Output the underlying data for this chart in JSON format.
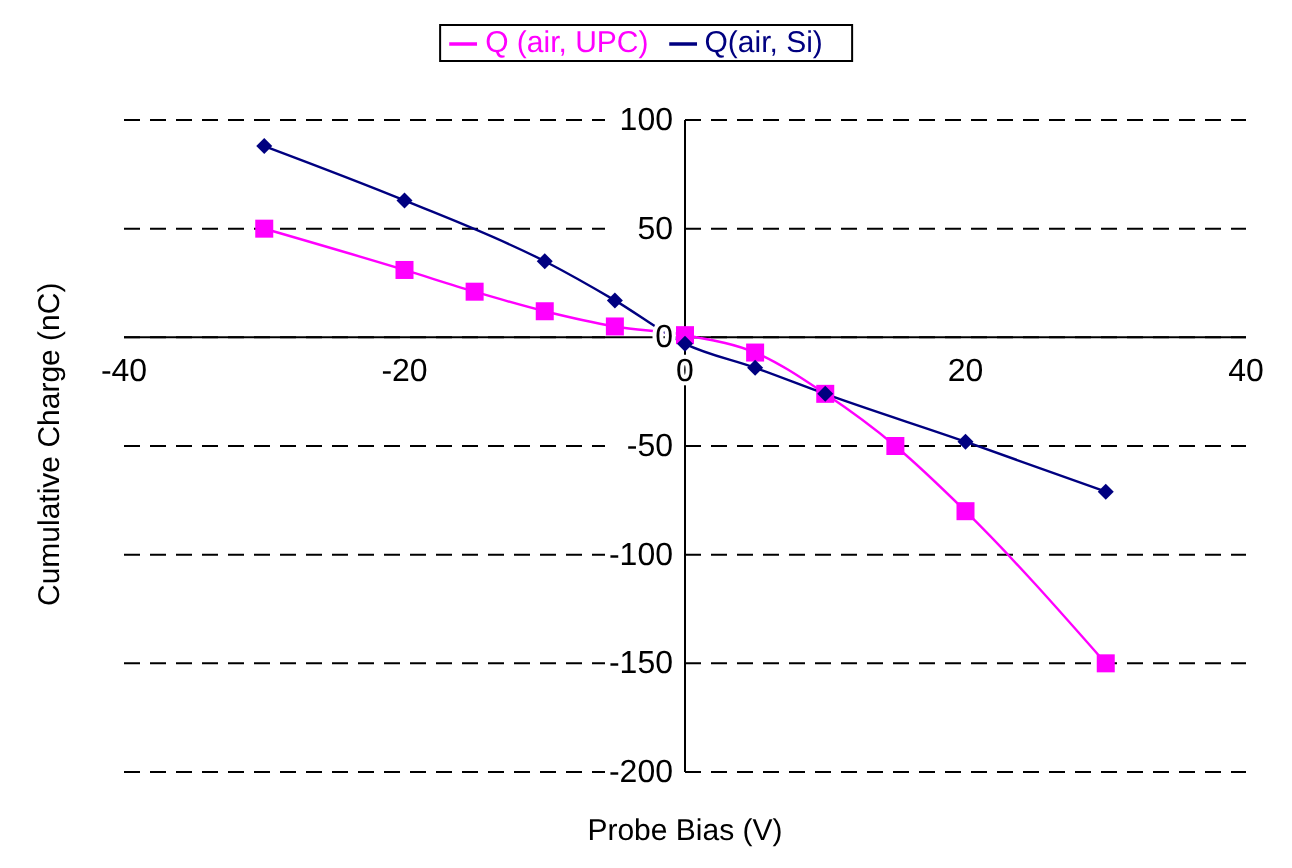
{
  "chart_data": {
    "type": "line",
    "xlabel": "Probe Bias (V)",
    "ylabel": "Cumulative Charge (nC)",
    "xlim": [
      -40,
      40
    ],
    "xticks": [
      -40,
      -20,
      0,
      20,
      40
    ],
    "ylim": [
      -200,
      100
    ],
    "yticks": [
      -200,
      -150,
      -100,
      -50,
      0,
      50,
      100
    ],
    "grid": "y",
    "legend": "top",
    "line_style": "solid",
    "series": [
      {
        "name": "Q (air, UPC)",
        "color": "#ff00ff",
        "marker": "square",
        "x": [
          -30,
          -20,
          -15,
          -10,
          -5,
          0,
          5,
          10,
          15,
          20,
          30
        ],
        "values": [
          50,
          31,
          21,
          12,
          5,
          1,
          -7,
          -26,
          -50,
          -80,
          -150
        ]
      },
      {
        "name": "Q(air, Si)",
        "color": "#000080",
        "marker": "diamond",
        "x": [
          -30,
          -20,
          -10,
          -5,
          0,
          5,
          10,
          20,
          30
        ],
        "values": [
          88,
          63,
          35,
          17,
          -3,
          -14,
          -26,
          -48,
          -71
        ]
      }
    ]
  }
}
